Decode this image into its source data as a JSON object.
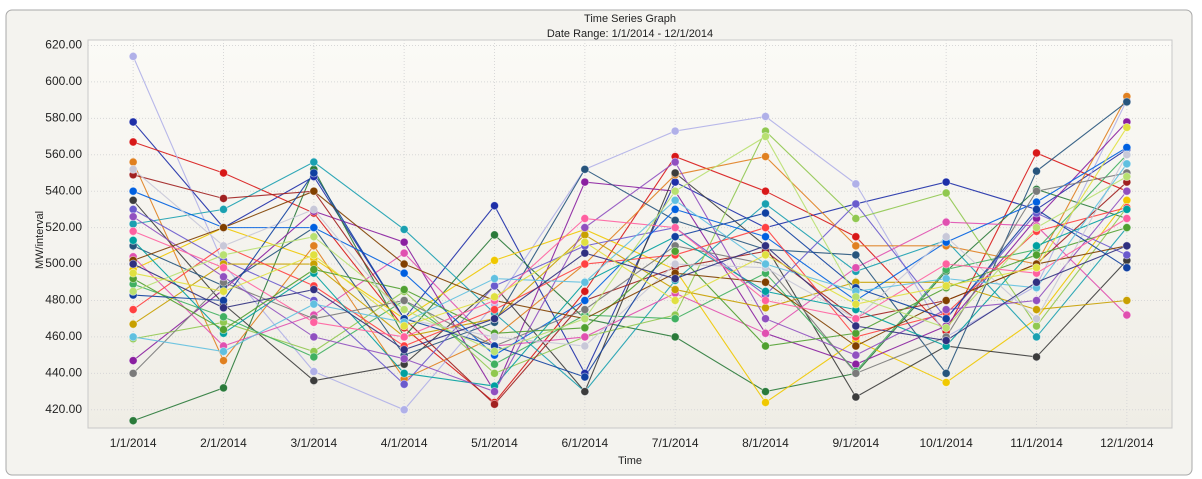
{
  "chart_data": {
    "type": "line",
    "title": "Time Series Graph",
    "subtitle": "Date Range: 1/1/2014 - 12/1/2014",
    "x_label": "Time",
    "y_label": "MW/interval",
    "categories": [
      "1/1/2014",
      "2/1/2014",
      "3/1/2014",
      "4/1/2014",
      "5/1/2014",
      "6/1/2014",
      "7/1/2014",
      "8/1/2014",
      "9/1/2014",
      "10/1/2014",
      "11/1/2014",
      "12/1/2014"
    ],
    "ylim": [
      410,
      623
    ],
    "yticks": [
      {
        "value": 420,
        "label": "420.00"
      },
      {
        "value": 440,
        "label": "440.00"
      },
      {
        "value": 460,
        "label": "460.00"
      },
      {
        "value": 480,
        "label": "480.00"
      },
      {
        "value": 500,
        "label": "500.00"
      },
      {
        "value": 520,
        "label": "520.00"
      },
      {
        "value": 540,
        "label": "540.00"
      },
      {
        "value": 560,
        "label": "560.00"
      },
      {
        "value": 580,
        "label": "580.00"
      },
      {
        "value": 600,
        "label": "600.00"
      },
      {
        "value": 620,
        "label": "620.00"
      }
    ],
    "grid": true,
    "series": [
      {
        "color": "#1e2fa8",
        "values": [
          578,
          520,
          548,
          470,
          532,
          440,
          545,
          520,
          533,
          545,
          530,
          563
        ]
      },
      {
        "color": "#d81818",
        "values": [
          567,
          550,
          528,
          465,
          424,
          485,
          559,
          540,
          515,
          463,
          561,
          540
        ]
      },
      {
        "color": "#2a7a3a",
        "values": [
          414,
          432,
          552,
          460,
          516,
          470,
          460,
          430,
          440,
          496,
          541,
          525
        ]
      },
      {
        "color": "#b0b0e8",
        "values": [
          614,
          500,
          441,
          420,
          478,
          552,
          573,
          581,
          544,
          460,
          488,
          590
        ]
      },
      {
        "color": "#f0c800",
        "values": [
          497,
          520,
          503,
          470,
          502,
          519,
          497,
          424,
          458,
          435,
          470,
          535
        ]
      },
      {
        "color": "#8a1fa0",
        "values": [
          447,
          486,
          529,
          512,
          430,
          545,
          540,
          462,
          445,
          466,
          525,
          578
        ]
      },
      {
        "color": "#1aa0b0",
        "values": [
          522,
          530,
          556,
          519,
          473,
          430,
          491,
          533,
          496,
          513,
          460,
          520
        ]
      },
      {
        "color": "#e08020",
        "values": [
          556,
          447,
          510,
          437,
          460,
          500,
          549,
          559,
          510,
          510,
          500,
          592
        ]
      },
      {
        "color": "#3c3c3c",
        "values": [
          535,
          478,
          436,
          445,
          488,
          430,
          550,
          510,
          427,
          455,
          449,
          502
        ]
      },
      {
        "color": "#90c850",
        "values": [
          459,
          468,
          452,
          485,
          440,
          460,
          472,
          573,
          525,
          539,
          466,
          531
        ]
      },
      {
        "color": "#e050b0",
        "values": [
          504,
          455,
          472,
          506,
          455,
          460,
          484,
          462,
          498,
          523,
          521,
          472
        ]
      },
      {
        "color": "#26547c",
        "values": [
          510,
          488,
          520,
          450,
          468,
          552,
          524,
          508,
          505,
          440,
          551,
          589
        ]
      },
      {
        "color": "#a02020",
        "values": [
          549,
          536,
          540,
          470,
          423,
          480,
          498,
          507,
          470,
          480,
          500,
          545
        ]
      },
      {
        "color": "#40b060",
        "values": [
          489,
          471,
          449,
          480,
          445,
          472,
          470,
          495,
          441,
          497,
          508,
          560
        ]
      },
      {
        "color": "#6a5acd",
        "values": [
          530,
          502,
          480,
          434,
          488,
          510,
          520,
          483,
          533,
          470,
          528,
          505
        ]
      },
      {
        "color": "#c8a000",
        "values": [
          467,
          500,
          500,
          460,
          470,
          516,
          486,
          476,
          490,
          490,
          475,
          480
        ]
      },
      {
        "color": "#0060e0",
        "values": [
          540,
          520,
          520,
          495,
          450,
          480,
          530,
          515,
          480,
          512,
          534,
          564
        ]
      },
      {
        "color": "#7a7a7a",
        "values": [
          440,
          490,
          470,
          480,
          455,
          475,
          510,
          500,
          440,
          460,
          540,
          550
        ]
      },
      {
        "color": "#ff4040",
        "values": [
          475,
          510,
          488,
          455,
          475,
          500,
          505,
          520,
          460,
          473,
          518,
          531
        ]
      },
      {
        "color": "#00a0a0",
        "values": [
          513,
          462,
          495,
          440,
          433,
          490,
          515,
          485,
          475,
          455,
          510,
          530
        ]
      },
      {
        "color": "#9050c0",
        "values": [
          526,
          493,
          460,
          448,
          430,
          520,
          556,
          470,
          450,
          475,
          480,
          540
        ]
      },
      {
        "color": "#50a030",
        "values": [
          492,
          464,
          497,
          486,
          462,
          465,
          507,
          455,
          462,
          487,
          505,
          520
        ]
      },
      {
        "color": "#c8c8d8",
        "values": [
          552,
          510,
          530,
          470,
          460,
          455,
          500,
          498,
          470,
          515,
          470,
          560
        ]
      },
      {
        "color": "#804000",
        "values": [
          502,
          520,
          540,
          500,
          480,
          470,
          495,
          490,
          455,
          480,
          500,
          510
        ]
      },
      {
        "color": "#1040a0",
        "values": [
          483,
          480,
          550,
          470,
          455,
          438,
          515,
          528,
          487,
          470,
          530,
          498
        ]
      },
      {
        "color": "#ff60a0",
        "values": [
          518,
          498,
          468,
          460,
          480,
          525,
          520,
          480,
          470,
          500,
          495,
          525
        ]
      },
      {
        "color": "#60c0e0",
        "values": [
          460,
          452,
          478,
          468,
          492,
          490,
          535,
          500,
          485,
          492,
          487,
          555
        ]
      },
      {
        "color": "#b8e070",
        "values": [
          485,
          505,
          515,
          475,
          452,
          470,
          540,
          570,
          482,
          465,
          520,
          548
        ]
      },
      {
        "color": "#303080",
        "values": [
          500,
          476,
          486,
          453,
          470,
          506,
          492,
          510,
          466,
          458,
          490,
          510
        ]
      },
      {
        "color": "#e0e040",
        "values": [
          495,
          485,
          505,
          466,
          482,
          512,
          480,
          505,
          478,
          488,
          498,
          575
        ]
      }
    ]
  }
}
